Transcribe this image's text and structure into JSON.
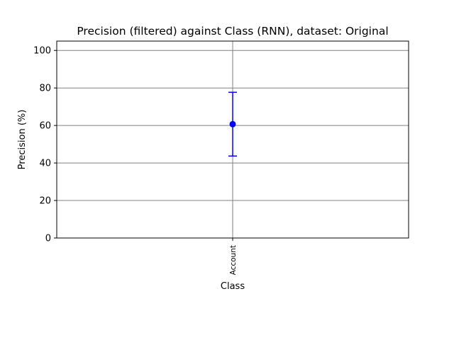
{
  "chart_data": {
    "type": "scatter",
    "title": "Precision (filtered) against Class (RNN), dataset: Original",
    "xlabel": "Class",
    "ylabel": "Precision (%)",
    "categories": [
      "Account"
    ],
    "series": [
      {
        "values": [
          60.7
        ],
        "error_low": [
          43.7
        ],
        "error_high": [
          77.7
        ],
        "color": "#0000ff"
      }
    ],
    "ylim": [
      0,
      105
    ],
    "yticks": [
      0,
      20,
      40,
      60,
      80,
      100
    ],
    "grid": true,
    "grid_color": "#808080"
  }
}
